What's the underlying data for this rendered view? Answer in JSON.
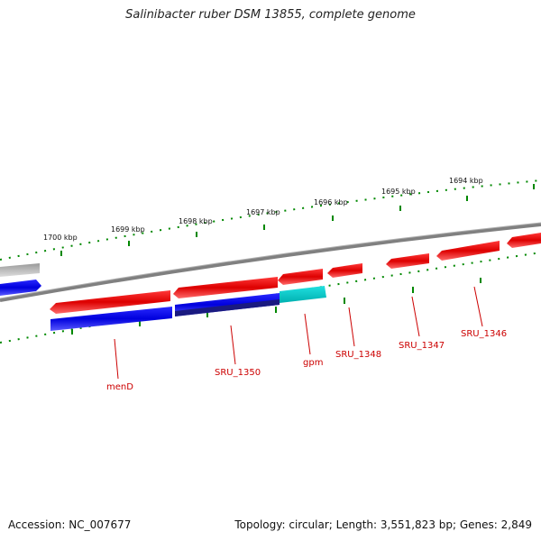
{
  "title": "Salinibacter ruber DSM 13855, complete genome",
  "footer": {
    "accession": "Accession: NC_007677",
    "topology": "Topology: circular; Length: 3,551,823 bp; Genes: 2,849"
  },
  "kbp_labels": [
    "1700 kbp",
    "1699 kbp",
    "1698 kbp",
    "1697 kbp",
    "1696 kbp",
    "1695 kbp",
    "1694 kbp"
  ],
  "gene_labels": [
    "menD",
    "SRU_1350",
    "gpm",
    "SRU_1348",
    "SRU_1347",
    "SRU_1346"
  ],
  "colors": {
    "forward_gene": "#ee0000",
    "reverse_gene": "#0000ee",
    "highlight_gene": "#00cccc",
    "partial_gene": "#bbbbbb",
    "backbone": "#808080",
    "ticks": "#008800",
    "label": "#cc0000"
  }
}
